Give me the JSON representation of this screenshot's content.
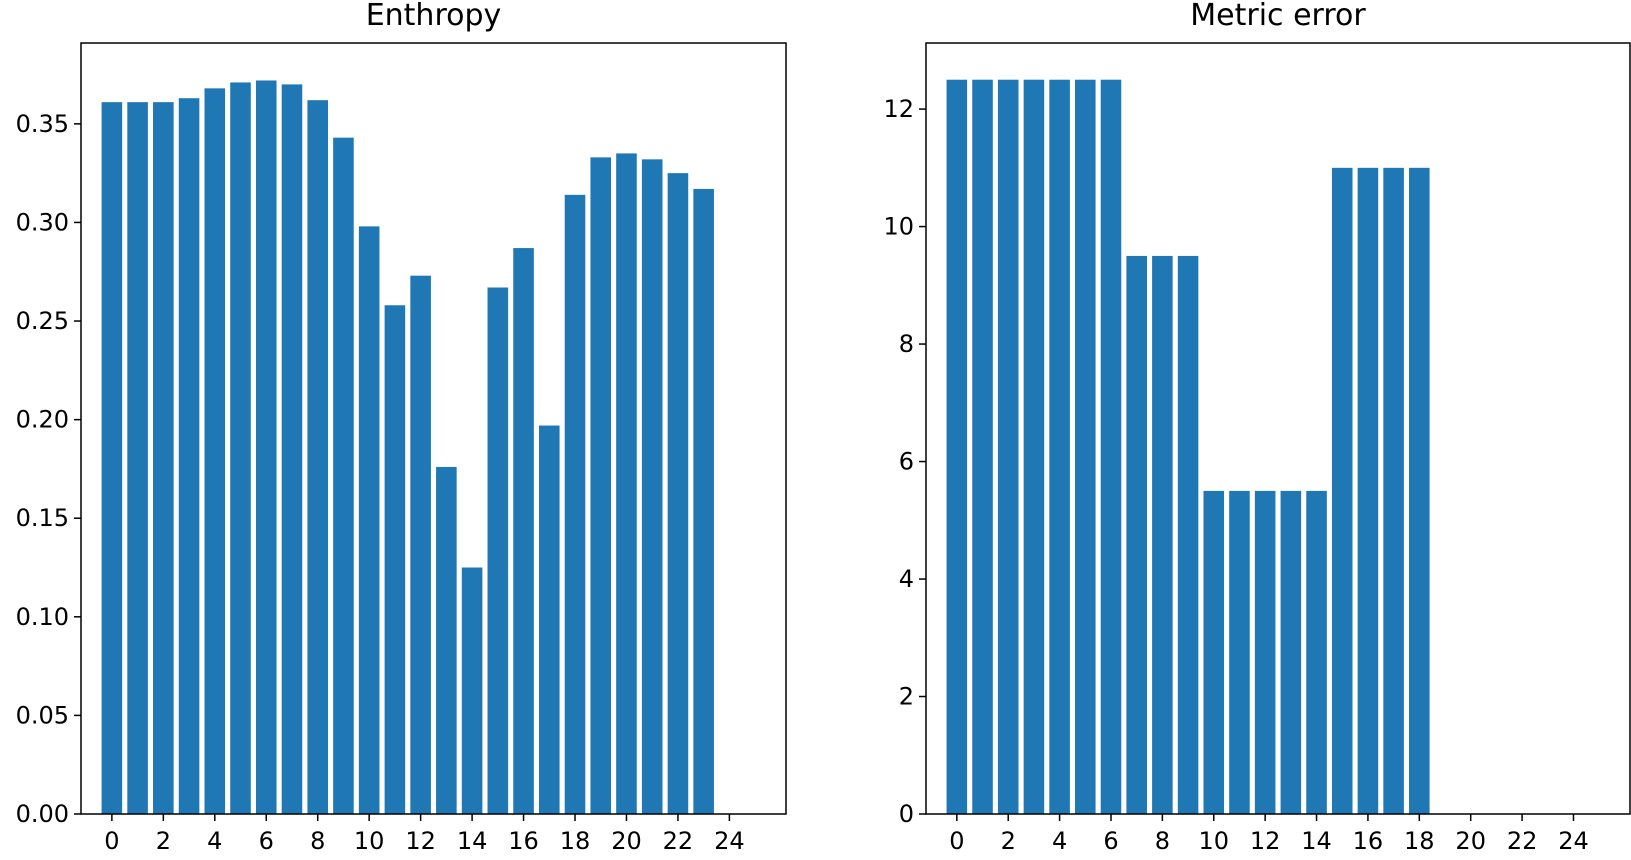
{
  "chart_data": [
    {
      "type": "bar",
      "title": "Enthropy",
      "xlabel": "",
      "ylabel": "",
      "x": [
        0,
        1,
        2,
        3,
        4,
        5,
        6,
        7,
        8,
        9,
        10,
        11,
        12,
        13,
        14,
        15,
        16,
        17,
        18,
        19,
        20,
        21,
        22,
        23
      ],
      "values": [
        0.361,
        0.361,
        0.361,
        0.363,
        0.368,
        0.371,
        0.372,
        0.37,
        0.362,
        0.343,
        0.298,
        0.258,
        0.273,
        0.176,
        0.125,
        0.267,
        0.287,
        0.197,
        0.314,
        0.333,
        0.335,
        0.332,
        0.325,
        0.317
      ],
      "xlim": [
        -1.2,
        26.2
      ],
      "ylim": [
        0,
        0.391
      ],
      "xticks": [
        0,
        2,
        4,
        6,
        8,
        10,
        12,
        14,
        16,
        18,
        20,
        22,
        24
      ],
      "xtick_labels": [
        "0",
        "2",
        "4",
        "6",
        "8",
        "10",
        "12",
        "14",
        "16",
        "18",
        "20",
        "22",
        "24"
      ],
      "yticks": [
        0,
        0.05,
        0.1,
        0.15,
        0.2,
        0.25,
        0.3,
        0.35
      ],
      "ytick_labels": [
        "0.00",
        "0.05",
        "0.10",
        "0.15",
        "0.20",
        "0.25",
        "0.30",
        "0.35"
      ],
      "color": "#1f77b4",
      "grid": false
    },
    {
      "type": "bar",
      "title": "Metric error",
      "xlabel": "",
      "ylabel": "",
      "x": [
        0,
        1,
        2,
        3,
        4,
        5,
        6,
        7,
        8,
        9,
        10,
        11,
        12,
        13,
        14,
        15,
        16,
        17,
        18
      ],
      "values": [
        12.5,
        12.5,
        12.5,
        12.5,
        12.5,
        12.5,
        12.5,
        9.5,
        9.5,
        9.5,
        5.5,
        5.5,
        5.5,
        5.5,
        5.5,
        11,
        11,
        11,
        11
      ],
      "xlim": [
        -1.2,
        26.2
      ],
      "ylim": [
        0,
        13.125
      ],
      "xticks": [
        0,
        2,
        4,
        6,
        8,
        10,
        12,
        14,
        16,
        18,
        20,
        22,
        24
      ],
      "xtick_labels": [
        "0",
        "2",
        "4",
        "6",
        "8",
        "10",
        "12",
        "14",
        "16",
        "18",
        "20",
        "22",
        "24"
      ],
      "yticks": [
        0,
        2,
        4,
        6,
        8,
        10,
        12
      ],
      "ytick_labels": [
        "0",
        "2",
        "4",
        "6",
        "8",
        "10",
        "12"
      ],
      "color": "#1f77b4",
      "grid": false
    }
  ]
}
